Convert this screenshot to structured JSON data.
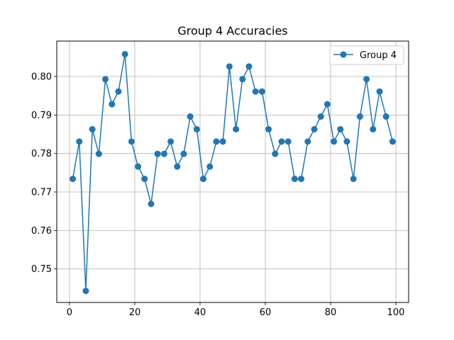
{
  "chart_data": {
    "type": "line",
    "title": "Group 4 Accuracies",
    "xlabel": "",
    "ylabel": "",
    "xlim": [
      -3.9,
      103.9
    ],
    "ylim": [
      0.7413,
      0.8092
    ],
    "x_ticks": [
      0,
      20,
      40,
      60,
      80,
      100
    ],
    "x_tick_labels": [
      "0",
      "20",
      "40",
      "60",
      "80",
      "100"
    ],
    "y_ticks": [
      0.75,
      0.76,
      0.77,
      0.78,
      0.79,
      0.8
    ],
    "y_tick_labels": [
      "0.75",
      "0.76",
      "0.77",
      "0.78",
      "0.79",
      "0.80"
    ],
    "grid": true,
    "legend_position": "top-right",
    "color": "#1f77b4",
    "series": [
      {
        "name": "Group 4",
        "x": [
          1,
          3,
          5,
          7,
          9,
          11,
          13,
          15,
          17,
          19,
          21,
          23,
          25,
          27,
          29,
          31,
          33,
          35,
          37,
          39,
          41,
          43,
          45,
          47,
          49,
          51,
          53,
          55,
          57,
          59,
          61,
          63,
          65,
          67,
          69,
          71,
          73,
          75,
          77,
          79,
          81,
          83,
          85,
          87,
          89,
          91,
          93,
          95,
          97,
          99
        ],
        "y": [
          0.7734,
          0.7831,
          0.7443,
          0.7863,
          0.7799,
          0.7993,
          0.7928,
          0.7961,
          0.8058,
          0.7831,
          0.7766,
          0.7734,
          0.7669,
          0.7799,
          0.7799,
          0.7831,
          0.7766,
          0.7799,
          0.7896,
          0.7863,
          0.7734,
          0.7766,
          0.7831,
          0.7831,
          0.8026,
          0.7863,
          0.7993,
          0.8026,
          0.7961,
          0.7961,
          0.7863,
          0.7799,
          0.7831,
          0.7831,
          0.7734,
          0.7734,
          0.7831,
          0.7863,
          0.7896,
          0.7928,
          0.7831,
          0.7863,
          0.7831,
          0.7734,
          0.7896,
          0.7993,
          0.7863,
          0.7961,
          0.7896,
          0.7831
        ]
      }
    ]
  }
}
